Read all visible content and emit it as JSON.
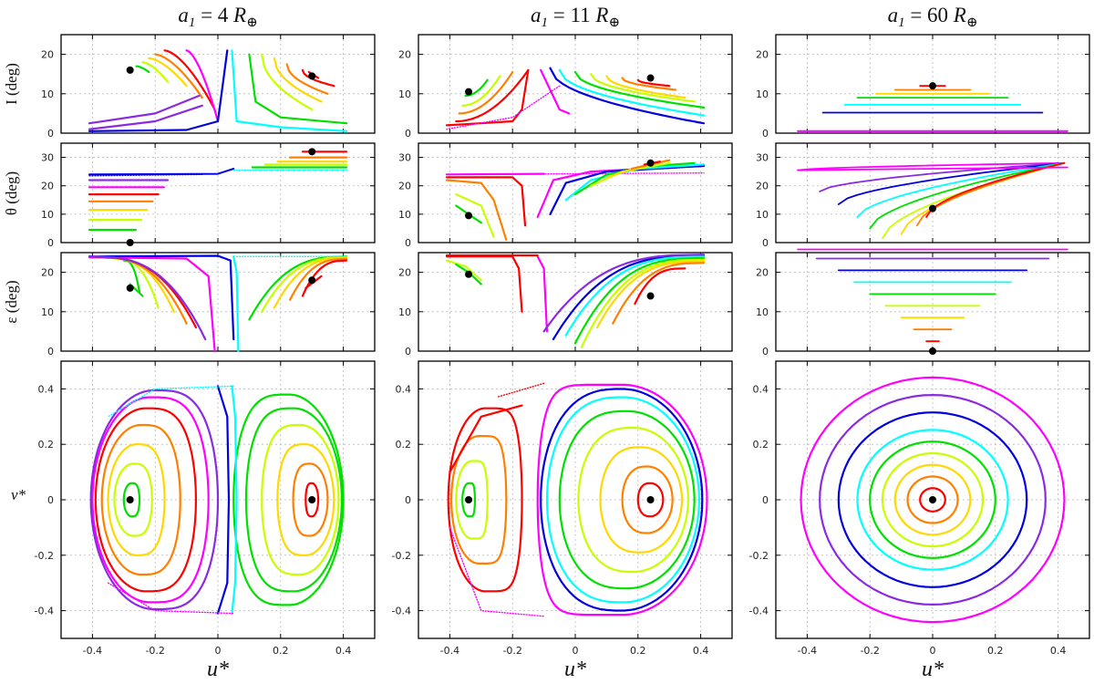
{
  "figure": {
    "columns": [
      {
        "title": "a",
        "sub": "1",
        "rest": " = 4 R",
        "earth": "⊕"
      },
      {
        "title": "a",
        "sub": "1",
        "rest": " = 11 R",
        "earth": "⊕"
      },
      {
        "title": "a",
        "sub": "1",
        "rest": " = 60 R",
        "earth": "⊕"
      }
    ],
    "row_labels": [
      "I (deg)",
      "θ (deg)",
      "ε (deg)",
      "ν*"
    ],
    "xlabel": "u*",
    "colors": [
      "#ff0000",
      "#ff8000",
      "#ffd800",
      "#c8ff00",
      "#00e000",
      "#00ffff",
      "#0000e0",
      "#8a2be2",
      "#ff00ff"
    ]
  },
  "chart_data": [
    {
      "type": "line",
      "panel": "u-v phase portrait, a1 = 4 R⊕",
      "xlabel": "u*",
      "ylabel": "ν*",
      "xlim": [
        -0.5,
        0.5
      ],
      "ylim": [
        -0.5,
        0.5
      ],
      "xticks": [
        -0.4,
        -0.2,
        0,
        0.2,
        0.4
      ],
      "yticks": [
        -0.4,
        -0.2,
        0,
        0.2,
        0.4
      ],
      "fixed_points": [
        [
          -0.28,
          0
        ],
        [
          0.3,
          0
        ]
      ],
      "left_lobe_curves": [
        {
          "xl": -0.3,
          "xr": -0.25,
          "h": 0.06
        },
        {
          "xl": -0.33,
          "xr": -0.21,
          "h": 0.13
        },
        {
          "xl": -0.35,
          "xr": -0.17,
          "h": 0.2
        },
        {
          "xl": -0.37,
          "xr": -0.12,
          "h": 0.27
        },
        {
          "xl": -0.39,
          "xr": -0.07,
          "h": 0.33
        },
        {
          "xl": -0.4,
          "xr": -0.03,
          "h": 0.37
        },
        {
          "xl": -0.405,
          "xr": 0.0,
          "h": 0.395
        }
      ],
      "right_lobe_curves": [
        {
          "xl": 0.28,
          "xr": 0.32,
          "h": 0.06
        },
        {
          "xl": 0.24,
          "xr": 0.35,
          "h": 0.13
        },
        {
          "xl": 0.19,
          "xr": 0.37,
          "h": 0.2
        },
        {
          "xl": 0.14,
          "xr": 0.385,
          "h": 0.27
        },
        {
          "xl": 0.09,
          "xr": 0.395,
          "h": 0.33
        },
        {
          "xl": 0.05,
          "xr": 0.4,
          "h": 0.38
        }
      ],
      "separatrix": {
        "x": 0.02,
        "h": 0.41
      }
    },
    {
      "type": "line",
      "panel": "u-v phase portrait, a1 = 11 R⊕",
      "xlabel": "u*",
      "ylabel": "ν*",
      "xlim": [
        -0.5,
        0.5
      ],
      "ylim": [
        -0.5,
        0.5
      ],
      "xticks": [
        -0.4,
        -0.2,
        0,
        0.2,
        0.4
      ],
      "yticks": [
        -0.4,
        -0.2,
        0,
        0.2,
        0.4
      ],
      "fixed_points": [
        [
          -0.34,
          0
        ],
        [
          0.24,
          0
        ]
      ],
      "left_lobe_curves": [
        {
          "xl": -0.36,
          "xr": -0.32,
          "h": 0.06
        },
        {
          "xl": -0.38,
          "xr": -0.28,
          "h": 0.14
        },
        {
          "xl": -0.395,
          "xr": -0.22,
          "h": 0.23
        },
        {
          "xl": -0.405,
          "xr": -0.17,
          "h": 0.33
        }
      ],
      "right_lobe_curves": [
        {
          "xl": 0.2,
          "xr": 0.28,
          "h": 0.06
        },
        {
          "xl": 0.15,
          "xr": 0.31,
          "h": 0.12
        },
        {
          "xl": 0.08,
          "xr": 0.34,
          "h": 0.19
        },
        {
          "xl": 0.01,
          "xr": 0.36,
          "h": 0.26
        },
        {
          "xl": -0.05,
          "xr": 0.38,
          "h": 0.32
        },
        {
          "xl": -0.09,
          "xr": 0.395,
          "h": 0.37
        },
        {
          "xl": -0.11,
          "xr": 0.405,
          "h": 0.4
        }
      ]
    },
    {
      "type": "line",
      "panel": "u-v phase portrait, a1 = 60 R⊕",
      "xlabel": "u*",
      "ylabel": "ν*",
      "xlim": [
        -0.5,
        0.5
      ],
      "ylim": [
        -0.5,
        0.5
      ],
      "xticks": [
        -0.4,
        -0.2,
        0,
        0.2,
        0.4
      ],
      "yticks": [
        -0.4,
        -0.2,
        0,
        0.2,
        0.4
      ],
      "fixed_points": [
        [
          0,
          0
        ]
      ],
      "circle_radii": [
        0.04,
        0.08,
        0.12,
        0.16,
        0.2,
        0.24,
        0.3,
        0.36,
        0.42
      ]
    },
    {
      "type": "line",
      "panel": "I (deg) vs u*, a1 = 4 R⊕",
      "ylabel": "I (deg)",
      "xlim": [
        -0.5,
        0.5
      ],
      "ylim": [
        0,
        25
      ],
      "yticks": [
        0,
        10,
        20
      ],
      "markers": [
        [
          -0.28,
          16
        ],
        [
          0.3,
          14.5
        ]
      ]
    },
    {
      "type": "line",
      "panel": "θ (deg) vs u*, a1 = 4 R⊕",
      "ylabel": "θ (deg)",
      "xlim": [
        -0.5,
        0.5
      ],
      "ylim": [
        0,
        35
      ],
      "yticks": [
        0,
        10,
        20,
        30
      ],
      "markers": [
        [
          -0.28,
          0
        ],
        [
          0.3,
          32
        ]
      ],
      "left_levels": [
        4.5,
        8,
        11.5,
        14.5,
        17,
        19.5,
        22
      ],
      "right_levels": [
        32,
        30,
        28.5,
        27.5,
        26.5
      ]
    },
    {
      "type": "line",
      "panel": "ε (deg) vs u*, a1 = 4 R⊕",
      "ylabel": "ε (deg)",
      "xlim": [
        -0.5,
        0.5
      ],
      "ylim": [
        0,
        25
      ],
      "yticks": [
        0,
        10,
        20
      ],
      "markers": [
        [
          -0.28,
          16
        ],
        [
          0.3,
          18
        ]
      ]
    },
    {
      "type": "line",
      "panel": "I (deg) vs u*, a1 = 11 R⊕",
      "ylabel": "I (deg)",
      "xlim": [
        -0.5,
        0.5
      ],
      "ylim": [
        0,
        25
      ],
      "yticks": [
        0,
        10,
        20
      ],
      "markers": [
        [
          -0.34,
          10.5
        ],
        [
          0.24,
          14
        ]
      ]
    },
    {
      "type": "line",
      "panel": "θ (deg) vs u*, a1 = 11 R⊕",
      "ylabel": "θ (deg)",
      "xlim": [
        -0.5,
        0.5
      ],
      "ylim": [
        0,
        35
      ],
      "yticks": [
        0,
        10,
        20,
        30
      ],
      "markers": [
        [
          -0.34,
          9.5
        ],
        [
          0.24,
          28
        ]
      ]
    },
    {
      "type": "line",
      "panel": "ε (deg) vs u*, a1 = 11 R⊕",
      "ylabel": "ε (deg)",
      "xlim": [
        -0.5,
        0.5
      ],
      "ylim": [
        0,
        25
      ],
      "yticks": [
        0,
        10,
        20
      ],
      "markers": [
        [
          -0.34,
          19.5
        ],
        [
          0.24,
          14
        ]
      ]
    },
    {
      "type": "line",
      "panel": "I (deg) vs u*, a1 = 60 R⊕",
      "ylabel": "I (deg)",
      "xlim": [
        -0.5,
        0.5
      ],
      "ylim": [
        0,
        25
      ],
      "yticks": [
        0,
        10,
        20
      ],
      "markers": [
        [
          0,
          12
        ]
      ],
      "levels": [
        12,
        11,
        10,
        9,
        7.2,
        5.2,
        0.5
      ]
    },
    {
      "type": "line",
      "panel": "θ (deg) vs u*, a1 = 60 R⊕",
      "ylabel": "θ (deg)",
      "xlim": [
        -0.5,
        0.5
      ],
      "ylim": [
        0,
        35
      ],
      "yticks": [
        0,
        10,
        20,
        30
      ],
      "markers": [
        [
          0,
          12
        ]
      ],
      "convergence_point": [
        0.42,
        28
      ]
    },
    {
      "type": "line",
      "panel": "ε (deg) vs u*, a1 = 60 R⊕",
      "ylabel": "ε (deg)",
      "xlim": [
        -0.5,
        0.5
      ],
      "ylim": [
        0,
        25
      ],
      "yticks": [
        0,
        10,
        20
      ],
      "markers": [
        [
          0,
          0
        ]
      ],
      "levels": [
        2.5,
        5.5,
        8.5,
        11.5,
        14.5,
        17.5,
        20.5,
        23.5,
        25.8
      ]
    }
  ]
}
